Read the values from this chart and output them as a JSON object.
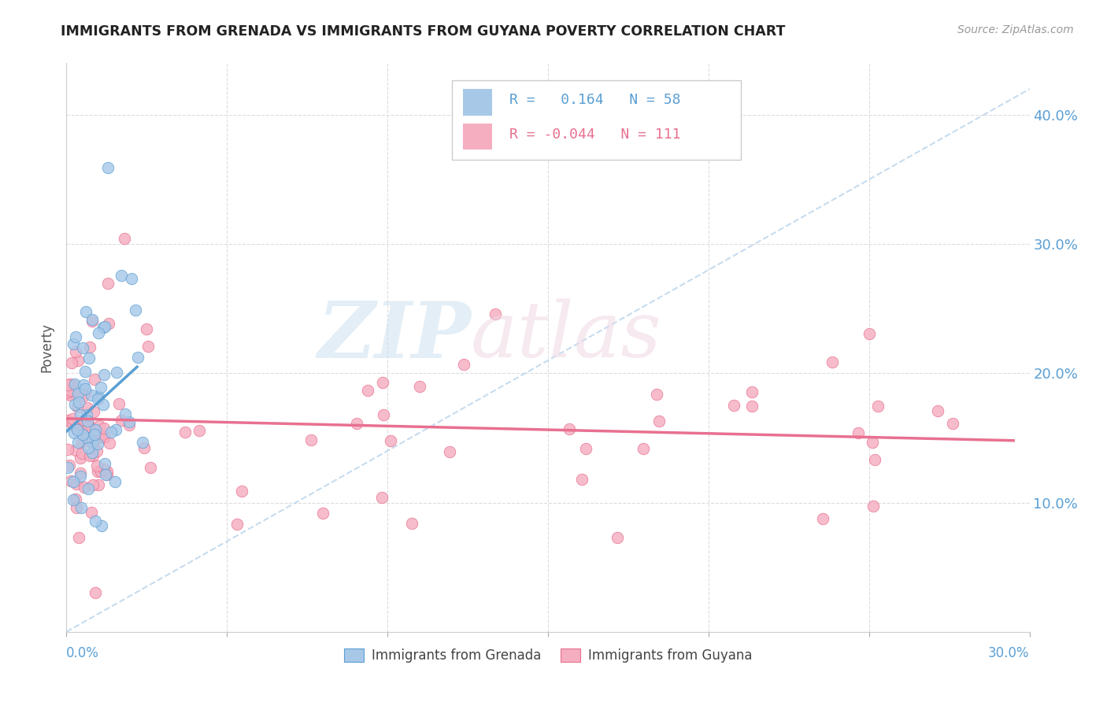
{
  "title": "IMMIGRANTS FROM GRENADA VS IMMIGRANTS FROM GUYANA POVERTY CORRELATION CHART",
  "source": "Source: ZipAtlas.com",
  "ylabel": "Poverty",
  "legend_label1": "Immigrants from Grenada",
  "legend_label2": "Immigrants from Guyana",
  "r1": "0.164",
  "n1": "58",
  "r2": "-0.044",
  "n2": "111",
  "color_grenada": "#a8c8e8",
  "color_guyana": "#f5aec0",
  "trendline_color_grenada": "#5a9fd4",
  "trendline_color_guyana": "#e87090",
  "dashed_line_color": "#b8d4ec",
  "grid_color": "#dddddd",
  "background_color": "#ffffff",
  "xlim": [
    0.0,
    0.3
  ],
  "ylim": [
    0.0,
    0.44
  ],
  "xtick_vals": [
    0.0,
    0.05,
    0.1,
    0.15,
    0.2,
    0.25,
    0.3
  ],
  "ytick_vals": [
    0.1,
    0.2,
    0.3,
    0.4
  ],
  "ytick_labels": [
    "10.0%",
    "20.0%",
    "30.0%",
    "40.0%"
  ],
  "title_color": "#222222",
  "source_color": "#999999",
  "axis_label_color": "#5a9fd4",
  "ylabel_color": "#555555"
}
